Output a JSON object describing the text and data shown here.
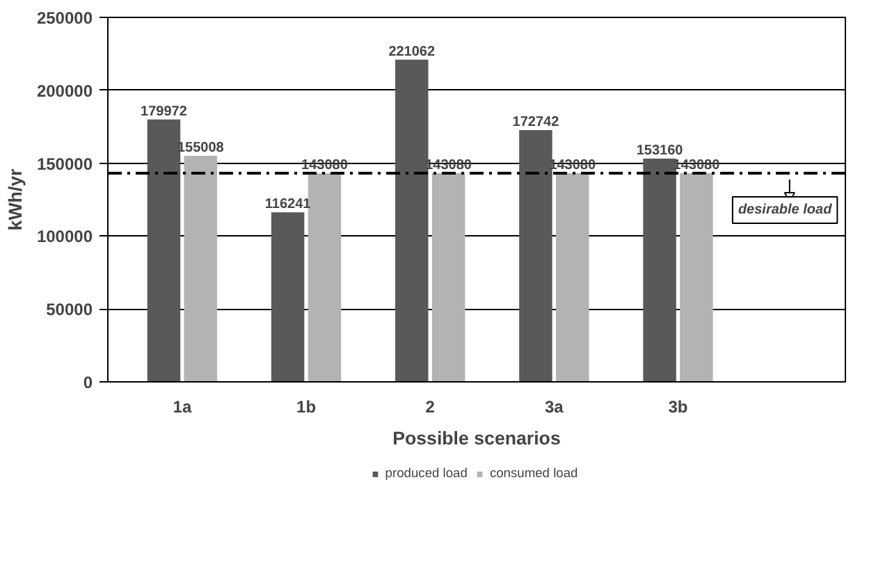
{
  "chart_data": {
    "type": "bar",
    "xlabel": "Possible scenarios",
    "ylabel": "kWh/yr",
    "categories": [
      "1a",
      "1b",
      "2",
      "3a",
      "3b"
    ],
    "series": [
      {
        "name": "produced load",
        "color": "#595959",
        "values": [
          179972,
          116241,
          221062,
          172742,
          153160
        ]
      },
      {
        "name": "consumed load",
        "color": "#b3b3b3",
        "values": [
          155008,
          143080,
          143080,
          143080,
          143080
        ]
      }
    ],
    "ylim": [
      0,
      250000
    ],
    "yticks": [
      0,
      50000,
      100000,
      150000,
      200000,
      250000
    ],
    "grid": "y",
    "legend": "bottom",
    "data_labels": true,
    "ref_lines": [
      {
        "axis": "y",
        "value": 143080,
        "label": "desirable load",
        "color": "#000000",
        "line_style": "dashdot"
      }
    ]
  }
}
